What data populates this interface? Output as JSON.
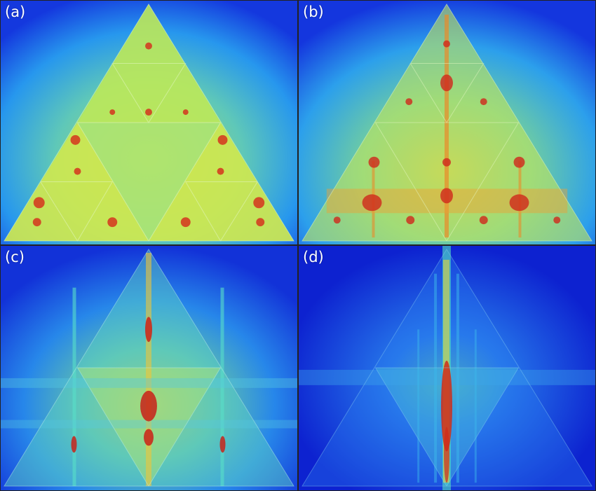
{
  "panels": [
    {
      "label": "(a)"
    },
    {
      "label": "(b)"
    },
    {
      "label": "(c)"
    },
    {
      "label": "(d)"
    }
  ],
  "colors": {
    "background_blue": "#1533e0",
    "cyan": "#35d4f0",
    "green": "#5fe8a0",
    "yellow": "#e6ee4a",
    "orange": "#f08a2a",
    "red": "#c8221a"
  }
}
